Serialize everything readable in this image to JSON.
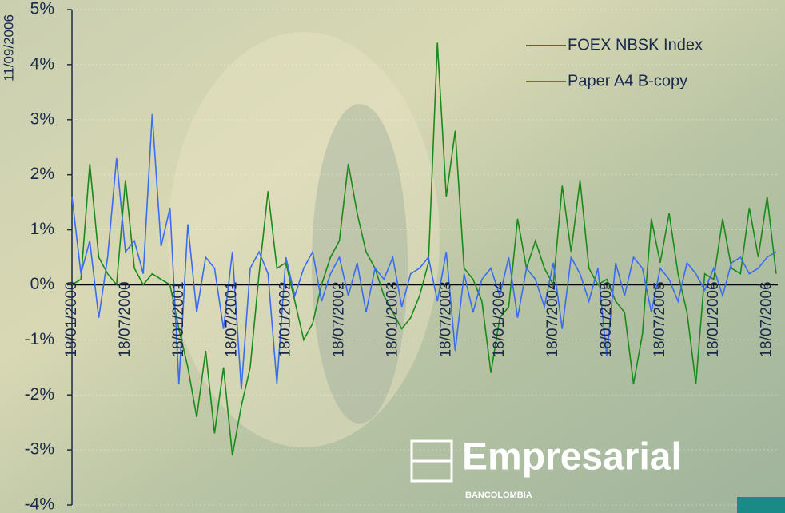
{
  "chart_data": {
    "type": "line",
    "corner_label": "11/09/2006",
    "categories": [
      "18/01/2000",
      null,
      null,
      null,
      null,
      null,
      "18/07/2000",
      null,
      null,
      null,
      null,
      null,
      "18/01/2001",
      null,
      null,
      null,
      null,
      null,
      "18/07/2001",
      null,
      null,
      null,
      null,
      null,
      "18/01/2002",
      null,
      null,
      null,
      null,
      null,
      "18/07/2002",
      null,
      null,
      null,
      null,
      null,
      "18/01/2003",
      null,
      null,
      null,
      null,
      null,
      "18/07/2003",
      null,
      null,
      null,
      null,
      null,
      "18/01/2004",
      null,
      null,
      null,
      null,
      null,
      "18/07/2004",
      null,
      null,
      null,
      null,
      null,
      "18/01/2005",
      null,
      null,
      null,
      null,
      null,
      "18/07/2005",
      null,
      null,
      null,
      null,
      null,
      "18/01/2006",
      null,
      null,
      null,
      null,
      null,
      "18/07/2006",
      null
    ],
    "series": [
      {
        "name": "FOEX NBSK Index",
        "color": "#1a8a1a",
        "values": [
          0,
          0.1,
          2.2,
          0.5,
          0.2,
          0,
          1.9,
          0.3,
          0,
          0.2,
          0.1,
          0,
          -0.8,
          -1.5,
          -2.4,
          -1.2,
          -2.7,
          -1.5,
          -3.1,
          -2.2,
          -1.5,
          0.2,
          1.7,
          0.3,
          0.4,
          -0.3,
          -1.0,
          -0.7,
          0,
          0.5,
          0.8,
          2.2,
          1.3,
          0.6,
          0.3,
          -0.2,
          -0.5,
          -0.8,
          -0.6,
          -0.2,
          0.4,
          4.4,
          1.6,
          2.8,
          0.3,
          0.1,
          -0.3,
          -1.6,
          -0.6,
          -0.4,
          1.2,
          0.3,
          0.8,
          0.3,
          0,
          1.8,
          0.6,
          1.9,
          0.3,
          0,
          0.1,
          -0.3,
          -0.5,
          -1.8,
          -0.9,
          1.2,
          0.4,
          1.3,
          0.2,
          -0.5,
          -1.8,
          0.2,
          0.1,
          1.2,
          0.3,
          0.2,
          1.4,
          0.5,
          1.6,
          0.2
        ]
      },
      {
        "name": "Paper A4 B-copy",
        "color": "#3a6cf0",
        "values": [
          1.6,
          0.2,
          0.8,
          -0.6,
          0.5,
          2.3,
          0.6,
          0.8,
          0.2,
          3.1,
          0.7,
          1.4,
          -1.8,
          1.1,
          -0.5,
          0.5,
          0.3,
          -0.8,
          0.6,
          -1.9,
          0.3,
          0.6,
          0.2,
          -1.8,
          0.5,
          -0.2,
          0.3,
          0.6,
          -0.3,
          0.2,
          0.5,
          -0.2,
          0.4,
          -0.5,
          0.3,
          0.1,
          0.5,
          -0.4,
          0.2,
          0.3,
          0.5,
          -0.3,
          0.6,
          -1.2,
          0.2,
          -0.5,
          0.1,
          0.3,
          -0.2,
          0.5,
          -0.6,
          0.3,
          0.1,
          -0.4,
          0.4,
          -0.8,
          0.5,
          0.2,
          -0.3,
          0.3,
          -1.3,
          0.4,
          -0.2,
          0.5,
          0.3,
          -0.5,
          0.3,
          0.1,
          -0.3,
          0.4,
          0.2,
          -0.1,
          0.3,
          -0.2,
          0.4,
          0.5,
          0.2,
          0.3,
          0.5,
          0.6
        ]
      }
    ],
    "ylim": [
      -4,
      5
    ],
    "yticks": [
      {
        "value": -4,
        "label": "-4%"
      },
      {
        "value": -3,
        "label": "-3%"
      },
      {
        "value": -2,
        "label": "-2%"
      },
      {
        "value": -1,
        "label": "-1%"
      },
      {
        "value": 0,
        "label": "0%"
      },
      {
        "value": 1,
        "label": "1%"
      },
      {
        "value": 2,
        "label": "2%"
      },
      {
        "value": 3,
        "label": "3%"
      },
      {
        "value": 4,
        "label": "4%"
      },
      {
        "value": 5,
        "label": "5%"
      }
    ],
    "grid": true,
    "legend": "top-right"
  },
  "branding": {
    "name": "Empresarial",
    "sub": "BANCOLOMBIA"
  }
}
